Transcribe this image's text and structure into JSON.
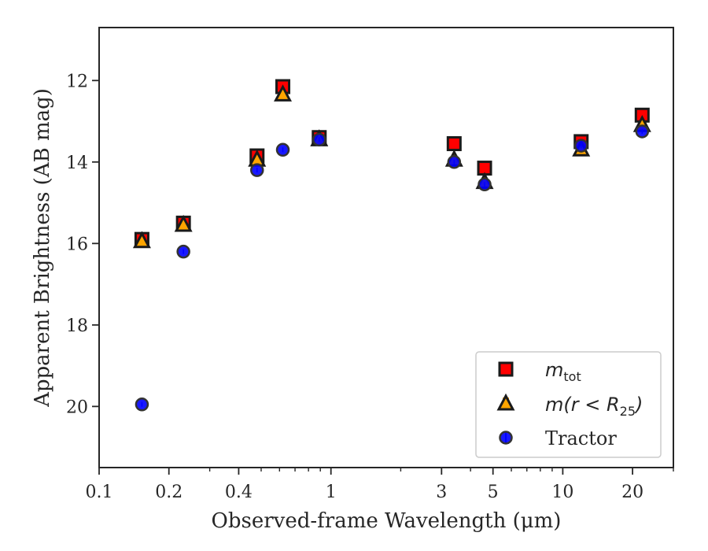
{
  "chart_data": {
    "type": "scatter",
    "xlabel": "Observed-frame Wavelength (μm)",
    "ylabel": "Apparent Brightness (AB mag)",
    "xscale": "log",
    "yaxis_inverted": true,
    "xlim": [
      0.1,
      30
    ],
    "ylim": [
      21.5,
      10.7
    ],
    "xticks": [
      {
        "value": 0.1,
        "label": "0.1"
      },
      {
        "value": 0.2,
        "label": "0.2"
      },
      {
        "value": 0.4,
        "label": "0.4"
      },
      {
        "value": 1,
        "label": "1"
      },
      {
        "value": 3,
        "label": "3"
      },
      {
        "value": 5,
        "label": "5"
      },
      {
        "value": 10,
        "label": "10"
      },
      {
        "value": 20,
        "label": "20"
      }
    ],
    "yticks": [
      {
        "value": 12,
        "label": "12"
      },
      {
        "value": 14,
        "label": "14"
      },
      {
        "value": 16,
        "label": "16"
      },
      {
        "value": 18,
        "label": "18"
      },
      {
        "value": 20,
        "label": "20"
      }
    ],
    "legend_position": "lower-right",
    "grid": false,
    "series": [
      {
        "name": "m_tot",
        "legend_main": "m",
        "legend_sub": "tot",
        "marker": "square",
        "color": "#ff0000",
        "x": [
          0.153,
          0.231,
          0.48,
          0.62,
          0.89,
          3.4,
          4.6,
          12.0,
          22.0
        ],
        "y": [
          15.9,
          15.5,
          13.85,
          12.15,
          13.4,
          13.55,
          14.15,
          13.5,
          12.85
        ]
      },
      {
        "name": "m(r<R25)",
        "legend_main": "m(r < R",
        "legend_sub": "25",
        "legend_tail": ")",
        "marker": "triangle",
        "color": "#ffa500",
        "x": [
          0.153,
          0.231,
          0.48,
          0.62,
          0.89,
          3.4,
          4.6,
          12.0,
          22.0
        ],
        "y": [
          15.95,
          15.55,
          13.95,
          12.35,
          13.45,
          13.95,
          14.5,
          13.7,
          13.1
        ]
      },
      {
        "name": "Tractor",
        "legend_main": "Tractor",
        "marker": "circle",
        "color": "#0000ff",
        "x": [
          0.153,
          0.231,
          0.48,
          0.62,
          0.89,
          3.4,
          4.6,
          12.0,
          22.0
        ],
        "y": [
          19.95,
          16.2,
          14.2,
          13.7,
          13.45,
          14.0,
          14.55,
          13.6,
          13.25
        ]
      }
    ]
  }
}
